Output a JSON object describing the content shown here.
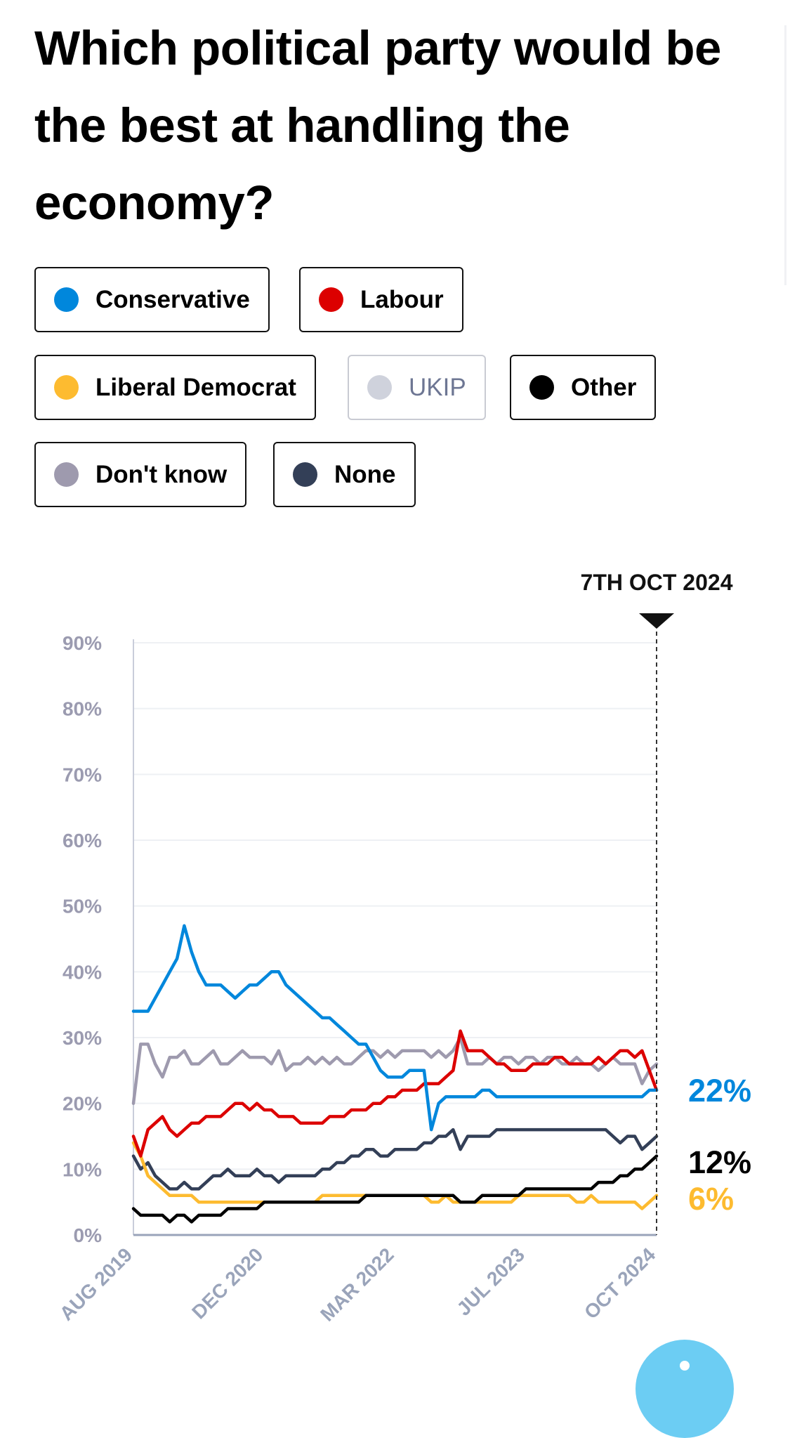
{
  "title": "Which political party would be the best at handling the economy?",
  "legend": [
    {
      "id": "conservative",
      "label": "Conservative",
      "color": "#0087dc",
      "active": true
    },
    {
      "id": "labour",
      "label": "Labour",
      "color": "#dc0000",
      "active": true
    },
    {
      "id": "libdem",
      "label": "Liberal Democrat",
      "color": "#fdbb30",
      "active": true
    },
    {
      "id": "ukip",
      "label": "UKIP",
      "color": "#cfd2dc",
      "active": false
    },
    {
      "id": "other",
      "label": "Other",
      "color": "#000000",
      "active": true
    },
    {
      "id": "dontknow",
      "label": "Don't know",
      "color": "#9e9aae",
      "active": true
    },
    {
      "id": "none",
      "label": "None",
      "color": "#333f57",
      "active": true
    }
  ],
  "chart_data": {
    "type": "line",
    "marker_label": "7TH OCT 2024",
    "y_ticks": [
      "0%",
      "10%",
      "20%",
      "30%",
      "40%",
      "50%",
      "60%",
      "70%",
      "80%",
      "90%"
    ],
    "ylim": [
      0,
      90
    ],
    "x_ticks": [
      "AUG 2019",
      "DEC 2020",
      "MAR 2022",
      "JUL 2023",
      "OCT 2024"
    ],
    "grid": true,
    "end_labels": [
      {
        "series": "conservative",
        "text": "22%",
        "color": "#0087dc"
      },
      {
        "series": "other",
        "text": "12%",
        "color": "#000000"
      },
      {
        "series": "libdem",
        "text": "6%",
        "color": "#fdbb30"
      }
    ],
    "series": [
      {
        "id": "dontknow",
        "color": "#9e9aae",
        "values": [
          20,
          29,
          29,
          26,
          24,
          27,
          27,
          28,
          26,
          26,
          27,
          28,
          26,
          26,
          27,
          28,
          27,
          27,
          27,
          26,
          28,
          25,
          26,
          26,
          27,
          26,
          27,
          26,
          27,
          26,
          26,
          27,
          28,
          28,
          27,
          28,
          27,
          28,
          28,
          28,
          28,
          27,
          28,
          27,
          28,
          30,
          26,
          26,
          26,
          27,
          26,
          27,
          27,
          26,
          27,
          27,
          26,
          27,
          27,
          26,
          26,
          27,
          26,
          26,
          25,
          26,
          27,
          26,
          26,
          26,
          23,
          25,
          26
        ]
      },
      {
        "id": "none",
        "color": "#333f57",
        "values": [
          12,
          10,
          11,
          9,
          8,
          7,
          7,
          8,
          7,
          7,
          8,
          9,
          9,
          10,
          9,
          9,
          9,
          10,
          9,
          9,
          8,
          9,
          9,
          9,
          9,
          9,
          10,
          10,
          11,
          11,
          12,
          12,
          13,
          13,
          12,
          12,
          13,
          13,
          13,
          13,
          14,
          14,
          15,
          15,
          16,
          13,
          15,
          15,
          15,
          15,
          16,
          16,
          16,
          16,
          16,
          16,
          16,
          16,
          16,
          16,
          16,
          16,
          16,
          16,
          16,
          16,
          15,
          14,
          15,
          15,
          13,
          14,
          15
        ]
      },
      {
        "id": "libdem",
        "color": "#fdbb30",
        "values": [
          14,
          12,
          9,
          8,
          7,
          6,
          6,
          6,
          6,
          5,
          5,
          5,
          5,
          5,
          5,
          5,
          5,
          5,
          5,
          5,
          5,
          5,
          5,
          5,
          5,
          5,
          6,
          6,
          6,
          6,
          6,
          6,
          6,
          6,
          6,
          6,
          6,
          6,
          6,
          6,
          6,
          5,
          5,
          6,
          5,
          5,
          5,
          5,
          5,
          5,
          5,
          5,
          5,
          6,
          6,
          6,
          6,
          6,
          6,
          6,
          6,
          5,
          5,
          6,
          5,
          5,
          5,
          5,
          5,
          5,
          4,
          5,
          6
        ]
      },
      {
        "id": "other",
        "color": "#000000",
        "values": [
          4,
          3,
          3,
          3,
          3,
          2,
          3,
          3,
          2,
          3,
          3,
          3,
          3,
          4,
          4,
          4,
          4,
          4,
          5,
          5,
          5,
          5,
          5,
          5,
          5,
          5,
          5,
          5,
          5,
          5,
          5,
          5,
          6,
          6,
          6,
          6,
          6,
          6,
          6,
          6,
          6,
          6,
          6,
          6,
          6,
          5,
          5,
          5,
          6,
          6,
          6,
          6,
          6,
          6,
          7,
          7,
          7,
          7,
          7,
          7,
          7,
          7,
          7,
          7,
          8,
          8,
          8,
          9,
          9,
          10,
          10,
          11,
          12
        ]
      },
      {
        "id": "labour",
        "color": "#dc0000",
        "values": [
          15,
          12,
          16,
          17,
          18,
          16,
          15,
          16,
          17,
          17,
          18,
          18,
          18,
          19,
          20,
          20,
          19,
          20,
          19,
          19,
          18,
          18,
          18,
          17,
          17,
          17,
          17,
          18,
          18,
          18,
          19,
          19,
          19,
          20,
          20,
          21,
          21,
          22,
          22,
          22,
          23,
          23,
          23,
          24,
          25,
          31,
          28,
          28,
          28,
          27,
          26,
          26,
          25,
          25,
          25,
          26,
          26,
          26,
          27,
          27,
          26,
          26,
          26,
          26,
          27,
          26,
          27,
          28,
          28,
          27,
          28,
          25,
          22
        ]
      },
      {
        "id": "conservative",
        "color": "#0087dc",
        "values": [
          34,
          34,
          34,
          36,
          38,
          40,
          42,
          47,
          43,
          40,
          38,
          38,
          38,
          37,
          36,
          37,
          38,
          38,
          39,
          40,
          40,
          38,
          37,
          36,
          35,
          34,
          33,
          33,
          32,
          31,
          30,
          29,
          29,
          27,
          25,
          24,
          24,
          24,
          25,
          25,
          25,
          16,
          20,
          21,
          21,
          21,
          21,
          21,
          22,
          22,
          21,
          21,
          21,
          21,
          21,
          21,
          21,
          21,
          21,
          21,
          21,
          21,
          21,
          21,
          21,
          21,
          21,
          21,
          21,
          21,
          21,
          22,
          22
        ]
      }
    ]
  }
}
